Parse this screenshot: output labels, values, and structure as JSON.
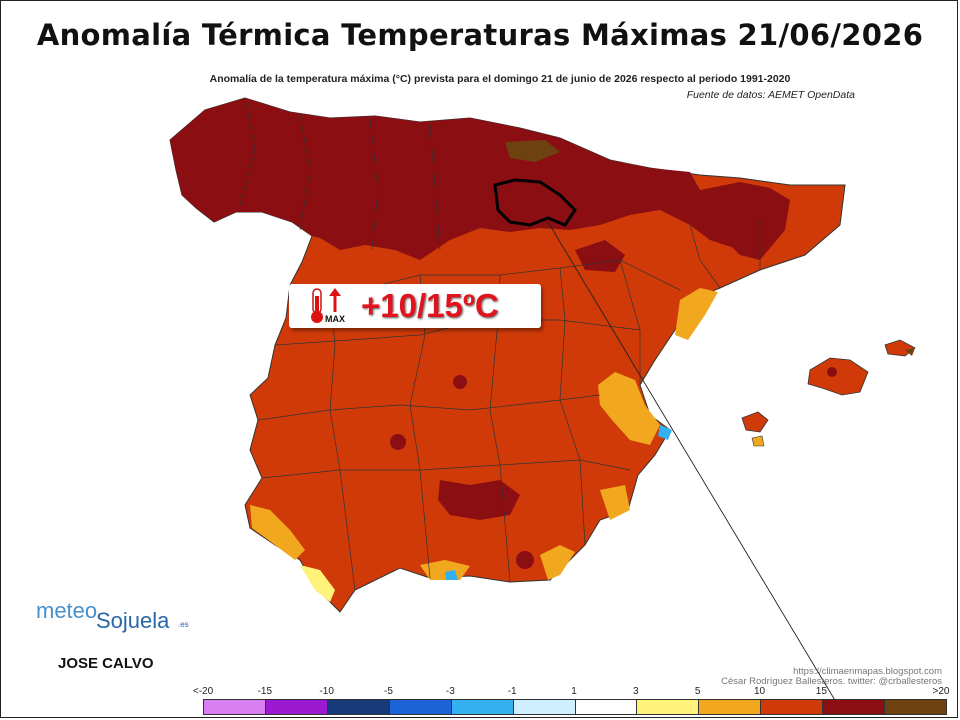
{
  "title": "Anomalía Térmica Temperaturas Máximas 21/06/2026",
  "subtitle": "Anomalía de la temperatura máxima (°C) prevista para el domingo 21 de junio de 2026 respecto al periodo 1991-2020",
  "source": "Fuente de datos: AEMET OpenData",
  "badge": {
    "icon": "thermometer-up-icon",
    "max_label": "MAX",
    "value": "+10/15ºC"
  },
  "logo": {
    "meteo": "meteo",
    "sojuela": "Sojuela",
    "es": ".es"
  },
  "author": "JOSE CALVO",
  "credit": {
    "url": "https://climaenmapas.blogspot.com",
    "line2": "César Rodríguez Ballesteros. twitter: @crballesteros"
  },
  "legend": {
    "ticks": [
      "<-20",
      "-15",
      "-10",
      "-5",
      "-3",
      "-1",
      "1",
      "3",
      "5",
      "10",
      "15",
      ">20"
    ],
    "colors": [
      "#d77ff0",
      "#9b19d0",
      "#173a78",
      "#1d63d8",
      "#34b0f0",
      "#cfeeff",
      "#ffffff",
      "#fff27a",
      "#f2a81e",
      "#cf3a08",
      "#8b0f12",
      "#6e4110"
    ]
  },
  "map": {
    "regions": {
      "dominant": "#cf3a08",
      "north_hot": "#8b0f12",
      "coastal_mild": "#f2a81e",
      "coastal_light": "#fff27a",
      "peak": "#6e4110",
      "sea_cool": "#34b0f0"
    },
    "highlight_region": "La Rioja"
  }
}
